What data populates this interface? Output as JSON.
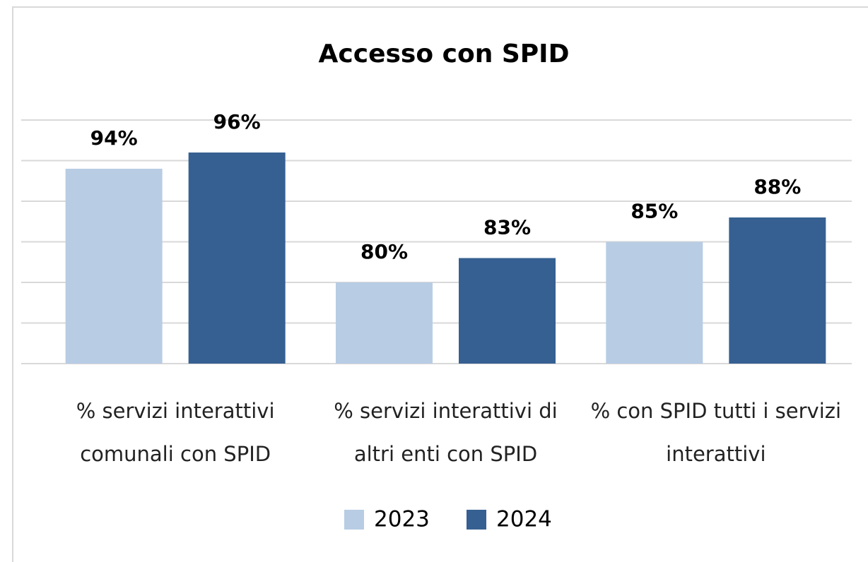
{
  "chart_data": {
    "type": "bar",
    "title": "Accesso con SPID",
    "categories": [
      "% servizi interattivi comunali con SPID",
      "% servizi interattivi di altri enti con SPID",
      "% con SPID tutti i servizi interattivi"
    ],
    "series": [
      {
        "name": "2023",
        "color": "#b8cce4",
        "values": [
          94,
          80,
          85
        ],
        "value_labels": [
          "94%",
          "80%",
          "85%"
        ]
      },
      {
        "name": "2024",
        "color": "#366092",
        "values": [
          96,
          83,
          88
        ],
        "value_labels": [
          "96%",
          "83%",
          "88%"
        ]
      }
    ],
    "ylim": [
      70,
      100
    ],
    "yticks": [
      70,
      75,
      80,
      85,
      90,
      95,
      100
    ],
    "grid": true,
    "legend": "bottom"
  }
}
